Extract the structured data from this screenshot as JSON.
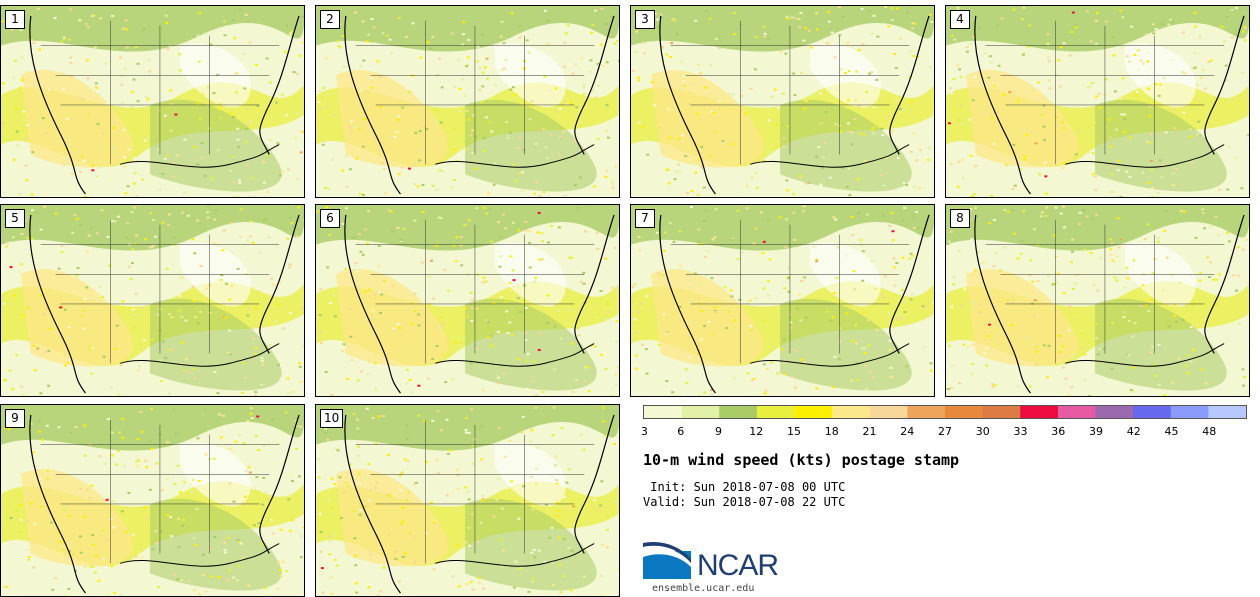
{
  "panels": [
    {
      "label": "1"
    },
    {
      "label": "2"
    },
    {
      "label": "3"
    },
    {
      "label": "4"
    },
    {
      "label": "5"
    },
    {
      "label": "6"
    },
    {
      "label": "7"
    },
    {
      "label": "8"
    },
    {
      "label": "9"
    },
    {
      "label": "10"
    }
  ],
  "chart_data": {
    "type": "heatmap",
    "title": "10-m wind speed (kts) postage stamp",
    "units": "kts",
    "colorbar_ticks": [
      "3",
      "6",
      "9",
      "12",
      "15",
      "18",
      "21",
      "24",
      "27",
      "30",
      "33",
      "36",
      "39",
      "42",
      "45",
      "48"
    ],
    "colorbar_bins": [
      {
        "min": 3,
        "max": 6,
        "color": "#f4f9d4"
      },
      {
        "min": 6,
        "max": 9,
        "color": "#e2f1a8"
      },
      {
        "min": 9,
        "max": 12,
        "color": "#a9cc66"
      },
      {
        "min": 12,
        "max": 15,
        "color": "#e8ef3c"
      },
      {
        "min": 15,
        "max": 18,
        "color": "#fbf000"
      },
      {
        "min": 18,
        "max": 21,
        "color": "#fbe88a"
      },
      {
        "min": 21,
        "max": 24,
        "color": "#f8d79a"
      },
      {
        "min": 24,
        "max": 27,
        "color": "#eda55c"
      },
      {
        "min": 27,
        "max": 30,
        "color": "#e6893d"
      },
      {
        "min": 30,
        "max": 33,
        "color": "#dd7b45"
      },
      {
        "min": 33,
        "max": 36,
        "color": "#ee0b3e"
      },
      {
        "min": 36,
        "max": 39,
        "color": "#e55aa2"
      },
      {
        "min": 39,
        "max": 42,
        "color": "#9b69ad"
      },
      {
        "min": 42,
        "max": 45,
        "color": "#6668f0"
      },
      {
        "min": 45,
        "max": 48,
        "color": "#8b9bfb"
      },
      {
        "min": 48,
        "max": 51,
        "color": "#b6c8fd"
      }
    ]
  },
  "meta": {
    "init": " Init: Sun 2018-07-08 00 UTC",
    "valid": "Valid: Sun 2018-07-08 22 UTC"
  },
  "logo": {
    "name": "NCAR",
    "url": "ensemble.ucar.edu"
  }
}
